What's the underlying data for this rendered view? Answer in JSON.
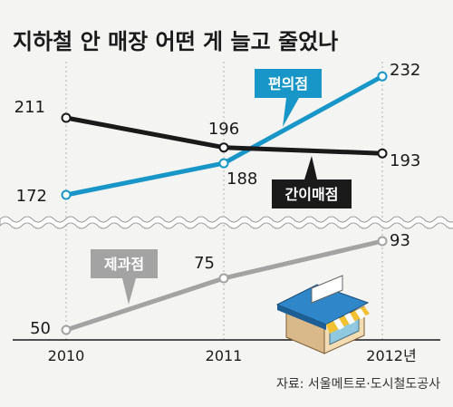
{
  "title": "지하철 안 매장 어떤 게 늘고 줄었나",
  "source": "자료: 서울메트로·도시철도공사",
  "colors": {
    "blue": "#1996c8",
    "black": "#1a1a1a",
    "gray": "#a3a3a3",
    "background": "#f4f4f2"
  },
  "illustration": "store-icon",
  "chart_data": {
    "type": "line",
    "x": [
      "2010",
      "2011",
      "2012"
    ],
    "tick_labels": [
      "2010",
      "2011",
      "2012년"
    ],
    "broken_axis": true,
    "grid": "vertical dashed",
    "series": [
      {
        "name": "편의점",
        "color": "#1996c8",
        "values": [
          172,
          188,
          232
        ],
        "labels": [
          "172",
          "188",
          "232"
        ]
      },
      {
        "name": "간이매점",
        "color": "#1a1a1a",
        "values": [
          211,
          196,
          193
        ],
        "labels": [
          "211",
          "196",
          "193"
        ]
      },
      {
        "name": "제과점",
        "color": "#a3a3a3",
        "values": [
          50,
          75,
          93
        ],
        "labels": [
          "50",
          "75",
          "93"
        ]
      }
    ]
  }
}
